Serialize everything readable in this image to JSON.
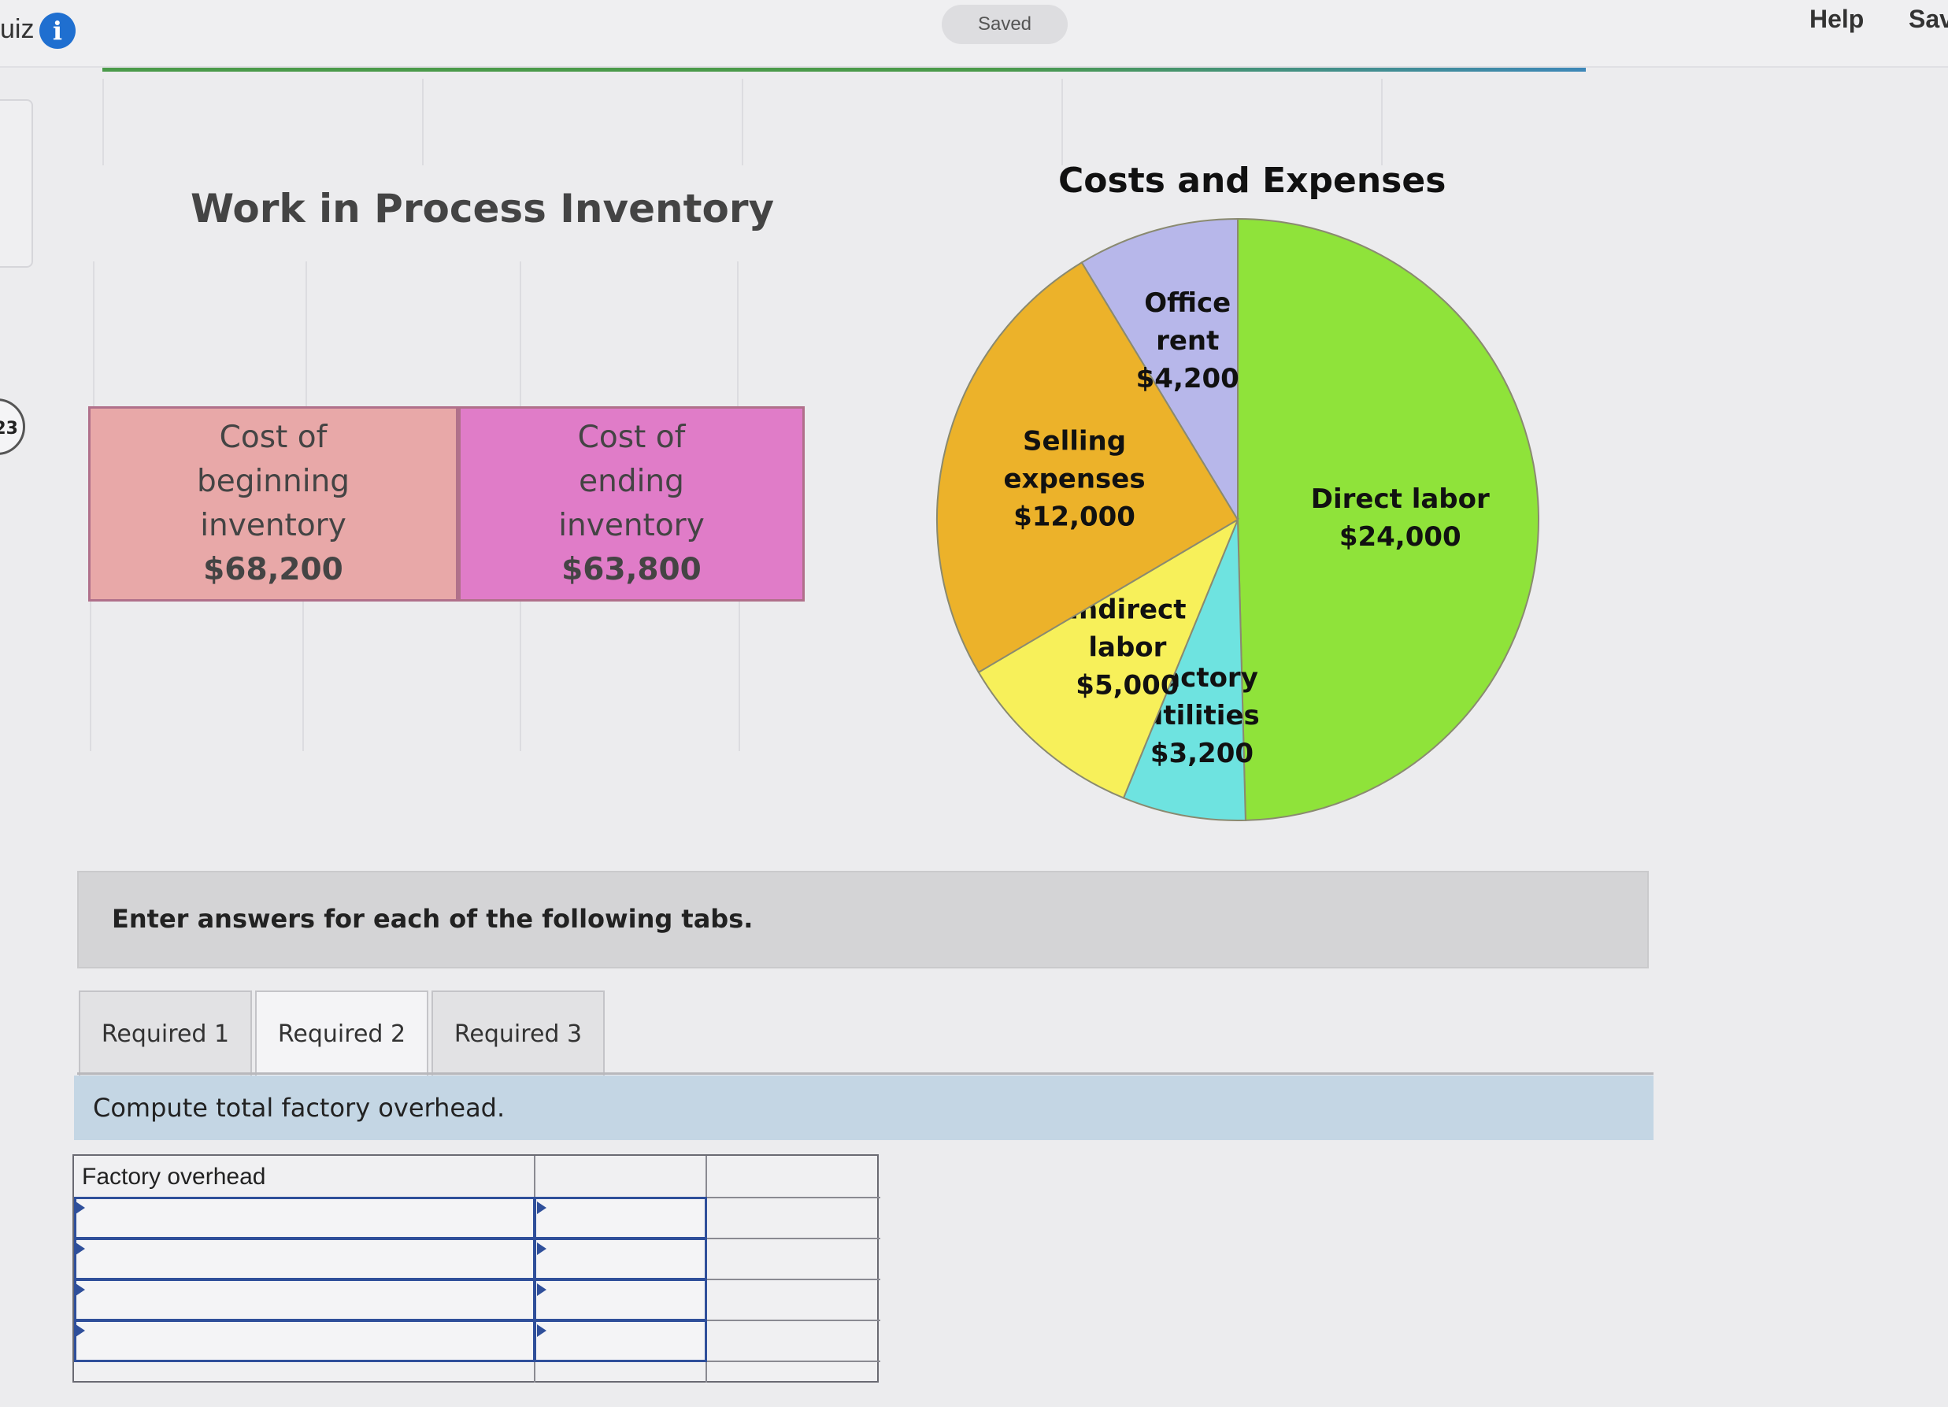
{
  "header": {
    "quiz_label": "uiz",
    "saved_label": "Saved",
    "help_label": "Help",
    "save_label": "Sav",
    "question_number": "23"
  },
  "figure": {
    "wip_title": "Work in Process Inventory",
    "beginning_label": [
      "Cost of",
      "beginning",
      "inventory"
    ],
    "beginning_amount": "$68,200",
    "ending_label": [
      "Cost of",
      "ending",
      "inventory"
    ],
    "ending_amount": "$63,800",
    "colors": {
      "beginning": "#e8a8a8",
      "ending": "#e07cc8"
    }
  },
  "chart_data": {
    "type": "pie",
    "title": "Costs and Expenses",
    "slices": [
      {
        "label": "Direct labor",
        "amount_text": "$24,000",
        "value": 24000,
        "color": "#8fe33a"
      },
      {
        "label": "Factory utilities",
        "amount_text": "$3,200",
        "value": 3200,
        "color": "#6ee3e0"
      },
      {
        "label": "Indirect labor",
        "amount_text": "$5,000",
        "value": 5000,
        "color": "#f7f05a"
      },
      {
        "label": "Selling expenses",
        "amount_text": "$12,000",
        "value": 12000,
        "color": "#ecb22a"
      },
      {
        "label": "Office rent",
        "amount_text": "$4,200",
        "value": 4200,
        "color": "#b7b7ea"
      }
    ]
  },
  "instructions": "Enter answers for each of the following tabs.",
  "tabs": [
    {
      "label": "Required 1"
    },
    {
      "label": "Required 2"
    },
    {
      "label": "Required 3"
    }
  ],
  "task": "Compute total factory overhead.",
  "table": {
    "header": "Factory overhead"
  }
}
